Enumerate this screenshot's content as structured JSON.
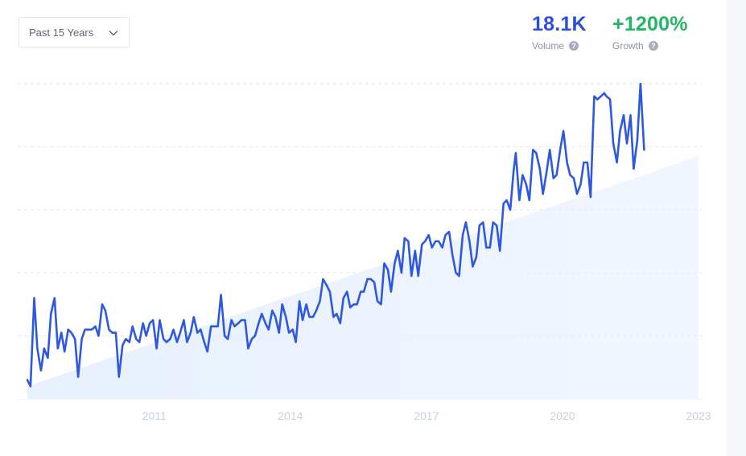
{
  "filter": {
    "selected": "Past 15 Years"
  },
  "metrics": {
    "volume": {
      "value": "18.1K",
      "label": "Volume",
      "color": "#2b4fd8"
    },
    "growth": {
      "value": "+1200%",
      "label": "Growth",
      "color": "#25b567"
    }
  },
  "help_icon": "question-icon",
  "colors": {
    "line": "#2e58e0",
    "area": "#e6effd",
    "grid": "#dfe3ea"
  },
  "chart_data": {
    "type": "line",
    "title": "",
    "xlabel": "",
    "ylabel": "",
    "grid": true,
    "x_tick_labels": [
      "2011",
      "2014",
      "2017",
      "2020",
      "2023"
    ],
    "x_range": [
      2008.2,
      2023.0
    ],
    "ylim": [
      0,
      100
    ],
    "series": [
      {
        "values": [
          [
            2008.2,
            6
          ],
          [
            2008.27,
            4
          ],
          [
            2008.35,
            32
          ],
          [
            2008.42,
            16
          ],
          [
            2008.5,
            9
          ],
          [
            2008.57,
            16
          ],
          [
            2008.65,
            13
          ],
          [
            2008.72,
            27
          ],
          [
            2008.8,
            32
          ],
          [
            2008.87,
            16
          ],
          [
            2008.95,
            21
          ],
          [
            2009.02,
            15
          ],
          [
            2009.1,
            22
          ],
          [
            2009.17,
            21
          ],
          [
            2009.25,
            19
          ],
          [
            2009.32,
            7
          ],
          [
            2009.4,
            19
          ],
          [
            2009.47,
            22
          ],
          [
            2009.55,
            22
          ],
          [
            2009.62,
            22
          ],
          [
            2009.7,
            23
          ],
          [
            2009.77,
            20
          ],
          [
            2009.85,
            30
          ],
          [
            2009.92,
            28
          ],
          [
            2010.0,
            22
          ],
          [
            2010.07,
            21
          ],
          [
            2010.15,
            21
          ],
          [
            2010.22,
            7
          ],
          [
            2010.3,
            17
          ],
          [
            2010.37,
            19
          ],
          [
            2010.45,
            18
          ],
          [
            2010.52,
            23
          ],
          [
            2010.6,
            19
          ],
          [
            2010.67,
            18
          ],
          [
            2010.75,
            24
          ],
          [
            2010.82,
            20
          ],
          [
            2010.9,
            24
          ],
          [
            2010.97,
            25
          ],
          [
            2011.05,
            16
          ],
          [
            2011.12,
            25
          ],
          [
            2011.2,
            19
          ],
          [
            2011.27,
            18
          ],
          [
            2011.35,
            19
          ],
          [
            2011.42,
            22
          ],
          [
            2011.5,
            18
          ],
          [
            2011.57,
            21
          ],
          [
            2011.65,
            25
          ],
          [
            2011.72,
            18
          ],
          [
            2011.8,
            21
          ],
          [
            2011.87,
            26
          ],
          [
            2011.95,
            21
          ],
          [
            2012.02,
            22
          ],
          [
            2012.1,
            18
          ],
          [
            2012.17,
            15
          ],
          [
            2012.25,
            23
          ],
          [
            2012.32,
            23
          ],
          [
            2012.4,
            23
          ],
          [
            2012.47,
            33
          ],
          [
            2012.55,
            20
          ],
          [
            2012.62,
            19
          ],
          [
            2012.7,
            25
          ],
          [
            2012.77,
            23
          ],
          [
            2012.85,
            24
          ],
          [
            2012.92,
            25
          ],
          [
            2013.0,
            25
          ],
          [
            2013.07,
            16
          ],
          [
            2013.15,
            19
          ],
          [
            2013.22,
            20
          ],
          [
            2013.3,
            24
          ],
          [
            2013.37,
            27
          ],
          [
            2013.45,
            24
          ],
          [
            2013.52,
            22
          ],
          [
            2013.6,
            28
          ],
          [
            2013.67,
            26
          ],
          [
            2013.75,
            21
          ],
          [
            2013.82,
            30
          ],
          [
            2013.9,
            26
          ],
          [
            2013.97,
            21
          ],
          [
            2014.05,
            22
          ],
          [
            2014.12,
            18
          ],
          [
            2014.2,
            31
          ],
          [
            2014.27,
            25
          ],
          [
            2014.35,
            30
          ],
          [
            2014.42,
            26
          ],
          [
            2014.5,
            26
          ],
          [
            2014.57,
            28
          ],
          [
            2014.65,
            31
          ],
          [
            2014.72,
            38
          ],
          [
            2014.8,
            36
          ],
          [
            2014.87,
            34
          ],
          [
            2014.95,
            26
          ],
          [
            2015.02,
            27
          ],
          [
            2015.1,
            24
          ],
          [
            2015.17,
            32
          ],
          [
            2015.25,
            34
          ],
          [
            2015.32,
            29
          ],
          [
            2015.4,
            30
          ],
          [
            2015.47,
            30
          ],
          [
            2015.55,
            34
          ],
          [
            2015.62,
            34
          ],
          [
            2015.7,
            38
          ],
          [
            2015.77,
            38
          ],
          [
            2015.85,
            37
          ],
          [
            2015.92,
            31
          ],
          [
            2016.0,
            30
          ],
          [
            2016.07,
            43
          ],
          [
            2016.15,
            41
          ],
          [
            2016.22,
            34
          ],
          [
            2016.3,
            43
          ],
          [
            2016.37,
            47
          ],
          [
            2016.45,
            40
          ],
          [
            2016.52,
            51
          ],
          [
            2016.6,
            50
          ],
          [
            2016.67,
            39
          ],
          [
            2016.75,
            47
          ],
          [
            2016.82,
            39
          ],
          [
            2016.9,
            49
          ],
          [
            2016.97,
            50
          ],
          [
            2017.05,
            52
          ],
          [
            2017.12,
            48
          ],
          [
            2017.2,
            50
          ],
          [
            2017.27,
            50
          ],
          [
            2017.35,
            48
          ],
          [
            2017.42,
            52
          ],
          [
            2017.5,
            53
          ],
          [
            2017.57,
            46
          ],
          [
            2017.65,
            40
          ],
          [
            2017.72,
            39
          ],
          [
            2017.8,
            52
          ],
          [
            2017.87,
            56
          ],
          [
            2017.95,
            50
          ],
          [
            2018.02,
            42
          ],
          [
            2018.1,
            45
          ],
          [
            2018.17,
            55
          ],
          [
            2018.25,
            56
          ],
          [
            2018.32,
            48
          ],
          [
            2018.4,
            48
          ],
          [
            2018.47,
            56
          ],
          [
            2018.55,
            55
          ],
          [
            2018.62,
            47
          ],
          [
            2018.7,
            62
          ],
          [
            2018.77,
            63
          ],
          [
            2018.85,
            60
          ],
          [
            2018.92,
            72
          ],
          [
            2018.97,
            78
          ],
          [
            2019.05,
            63
          ],
          [
            2019.12,
            71
          ],
          [
            2019.2,
            68
          ],
          [
            2019.27,
            63
          ],
          [
            2019.35,
            79
          ],
          [
            2019.42,
            78
          ],
          [
            2019.5,
            73
          ],
          [
            2019.57,
            65
          ],
          [
            2019.65,
            72
          ],
          [
            2019.72,
            79
          ],
          [
            2019.8,
            70
          ],
          [
            2019.87,
            71
          ],
          [
            2019.95,
            79
          ],
          [
            2020.02,
            85
          ],
          [
            2020.1,
            75
          ],
          [
            2020.17,
            71
          ],
          [
            2020.25,
            70
          ],
          [
            2020.32,
            65
          ],
          [
            2020.4,
            68
          ],
          [
            2020.47,
            75
          ],
          [
            2020.55,
            75
          ],
          [
            2020.62,
            64
          ],
          [
            2020.7,
            96
          ],
          [
            2020.77,
            95
          ],
          [
            2020.85,
            96
          ],
          [
            2020.92,
            97
          ],
          [
            2020.97,
            96
          ],
          [
            2021.05,
            95
          ],
          [
            2021.12,
            81
          ],
          [
            2021.2,
            75
          ],
          [
            2021.27,
            85
          ],
          [
            2021.35,
            90
          ],
          [
            2021.42,
            81
          ],
          [
            2021.5,
            90
          ],
          [
            2021.57,
            73
          ],
          [
            2021.65,
            82
          ],
          [
            2021.72,
            100
          ],
          [
            2021.8,
            79
          ]
        ]
      }
    ]
  }
}
